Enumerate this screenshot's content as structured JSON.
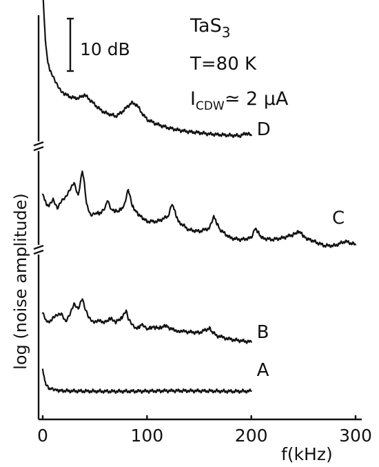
{
  "chart_data": {
    "type": "line",
    "xlabel": "f(kHz)",
    "ylabel": "log (noise amplitude)",
    "x_ticks": [
      "0",
      "100",
      "200",
      "300"
    ],
    "xlim": [
      0,
      300
    ],
    "scale_bar_label": "10 dB",
    "annotations": {
      "material": "TaS",
      "material_sub": "3",
      "temperature": "T=80 K",
      "current_main": "I",
      "current_sub": "CDW",
      "current_value": "≃ 2 μA"
    },
    "series": [
      {
        "name": "A",
        "x": [
          0,
          1,
          2,
          3,
          5,
          8,
          12,
          20,
          40,
          60,
          80,
          100,
          120,
          140,
          160,
          180,
          200
        ],
        "y": [
          6.5,
          5.0,
          3.5,
          2.2,
          1.2,
          0.8,
          0.5,
          0.3,
          0.2,
          0.15,
          0.15,
          0.2,
          0.3,
          0.3,
          0.25,
          0.15,
          0.2
        ]
      },
      {
        "name": "B",
        "x": [
          0,
          2,
          5,
          10,
          14,
          18,
          22,
          26,
          30,
          34,
          38,
          40,
          44,
          48,
          55,
          60,
          66,
          70,
          76,
          80,
          82,
          86,
          90,
          96,
          100,
          106,
          112,
          118,
          121,
          126,
          135,
          150,
          160,
          163,
          168,
          180,
          200
        ],
        "y": [
          13,
          11.5,
          10,
          11.5,
          12.5,
          13,
          10.5,
          12.5,
          15.5,
          14,
          17.5,
          15,
          12,
          10.5,
          10.5,
          10.2,
          11.5,
          10.3,
          11.5,
          13.5,
          11,
          9.3,
          8.2,
          9.6,
          8.2,
          8.7,
          8.4,
          9.2,
          8.5,
          7.8,
          7.4,
          7.0,
          8.4,
          7.0,
          6.0,
          5.0,
          4.2
        ]
      },
      {
        "name": "C",
        "x": [
          0,
          3,
          6,
          10,
          14,
          18,
          22,
          26,
          30,
          34,
          38,
          40,
          42,
          46,
          50,
          56,
          60,
          62,
          66,
          72,
          78,
          82,
          86,
          92,
          100,
          110,
          120,
          124,
          130,
          140,
          150,
          160,
          164,
          170,
          180,
          190,
          200,
          204,
          210,
          220,
          230,
          240,
          246,
          252,
          260,
          270,
          280,
          290,
          300
        ],
        "y": [
          26,
          23,
          22,
          24,
          21.5,
          24,
          25,
          27,
          29,
          25,
          33,
          29,
          23,
          19.5,
          20,
          20,
          21.5,
          24,
          21,
          20.5,
          22,
          27,
          22,
          19.5,
          17.5,
          17.5,
          19,
          23,
          17.5,
          15,
          14.5,
          15.5,
          19,
          15,
          12.5,
          12,
          12.5,
          15.5,
          12.5,
          12,
          12.5,
          13.5,
          14.5,
          12.5,
          11.5,
          10.2,
          10.2,
          11.5,
          10.5
        ]
      },
      {
        "name": "D",
        "x": [
          0,
          1,
          2,
          3,
          5,
          8,
          12,
          16,
          20,
          25,
          30,
          35,
          40,
          45,
          50,
          55,
          60,
          65,
          70,
          75,
          80,
          85,
          90,
          95,
          100,
          110,
          120,
          130,
          140,
          150,
          160,
          170,
          180,
          190,
          195,
          200
        ],
        "y": [
          70,
          64,
          58,
          53,
          48,
          45,
          42.5,
          40.5,
          39,
          38,
          37.5,
          37.5,
          38.5,
          37,
          35.5,
          34,
          33,
          32.5,
          32,
          33,
          34.5,
          36,
          35.5,
          33,
          31,
          29.5,
          28.5,
          27.8,
          27.3,
          27,
          26.6,
          26.4,
          26.2,
          26.1,
          26.9,
          26.2
        ]
      }
    ]
  }
}
